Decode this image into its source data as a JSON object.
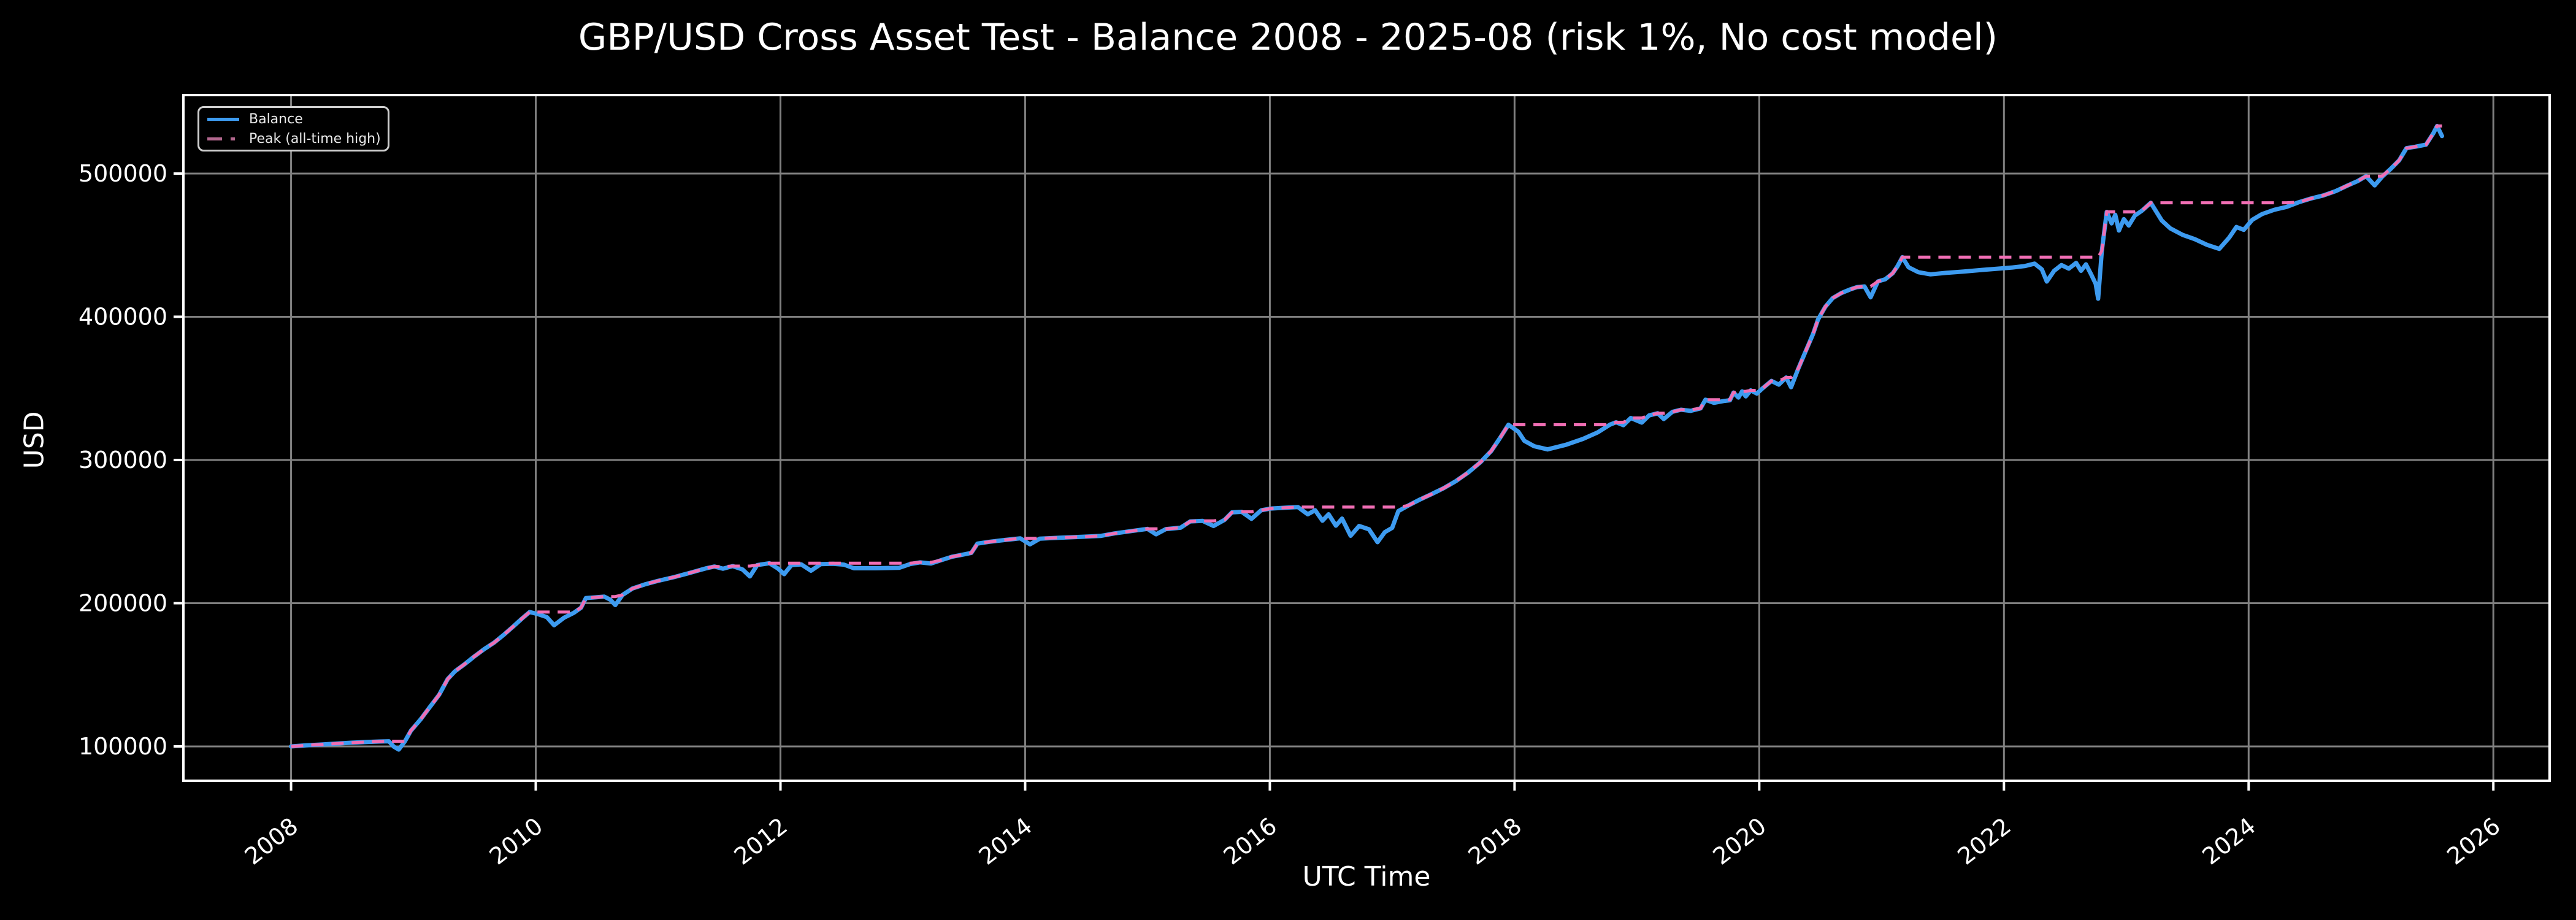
{
  "title": "GBP/USD Cross Asset Test - Balance 2008 - 2025-08 (risk 1%, No cost model)",
  "legend": {
    "position": "top-left",
    "items": [
      {
        "label": "Balance",
        "color": "#3d9bf0",
        "style": "solid"
      },
      {
        "label": "Peak (all-time high)",
        "color": "#f06eb4",
        "style": "dashed"
      }
    ]
  },
  "chart_data": {
    "type": "line",
    "title": "GBP/USD Cross Asset Test - Balance 2008 - 2025-08 (risk 1%, No cost model)",
    "xlabel": "UTC Time",
    "ylabel": "USD",
    "xlim": [
      2007.12,
      2026.46
    ],
    "ylim": [
      76000,
      554800
    ],
    "x_ticks": [
      2008,
      2010,
      2012,
      2014,
      2016,
      2018,
      2020,
      2022,
      2024,
      2026
    ],
    "x_tick_labels": [
      "2008",
      "2010",
      "2012",
      "2014",
      "2016",
      "2018",
      "2020",
      "2022",
      "2024",
      "2026"
    ],
    "y_ticks": [
      100000,
      200000,
      300000,
      400000,
      500000
    ],
    "y_tick_labels": [
      "100000",
      "200000",
      "300000",
      "400000",
      "500000"
    ],
    "grid": true,
    "background": "#000000",
    "grid_color": "#808080",
    "spine_color": "#ffffff",
    "text_color": "#ffffff",
    "series": [
      {
        "name": "Balance",
        "color": "#3d9bf0",
        "style": "solid",
        "points": [
          [
            2008.0,
            100000
          ],
          [
            2008.12,
            100700
          ],
          [
            2008.25,
            101300
          ],
          [
            2008.38,
            102000
          ],
          [
            2008.5,
            102600
          ],
          [
            2008.62,
            103100
          ],
          [
            2008.72,
            103400
          ],
          [
            2008.8,
            103600
          ],
          [
            2008.84,
            99800
          ],
          [
            2008.88,
            97800
          ],
          [
            2008.93,
            103500
          ],
          [
            2008.98,
            111000
          ],
          [
            2009.06,
            119000
          ],
          [
            2009.13,
            127000
          ],
          [
            2009.21,
            136000
          ],
          [
            2009.28,
            147000
          ],
          [
            2009.34,
            152500
          ],
          [
            2009.42,
            157500
          ],
          [
            2009.5,
            163000
          ],
          [
            2009.58,
            168000
          ],
          [
            2009.66,
            172500
          ],
          [
            2009.74,
            178000
          ],
          [
            2009.82,
            184000
          ],
          [
            2009.89,
            189500
          ],
          [
            2009.95,
            193800
          ],
          [
            2010.02,
            192300
          ],
          [
            2010.09,
            190300
          ],
          [
            2010.15,
            184600
          ],
          [
            2010.23,
            189800
          ],
          [
            2010.31,
            193200
          ],
          [
            2010.37,
            196800
          ],
          [
            2010.41,
            203600
          ],
          [
            2010.49,
            204100
          ],
          [
            2010.56,
            204600
          ],
          [
            2010.61,
            202400
          ],
          [
            2010.65,
            198700
          ],
          [
            2010.71,
            205800
          ],
          [
            2010.79,
            210200
          ],
          [
            2010.89,
            213100
          ],
          [
            2011.0,
            215600
          ],
          [
            2011.13,
            218200
          ],
          [
            2011.26,
            221200
          ],
          [
            2011.39,
            224300
          ],
          [
            2011.46,
            225600
          ],
          [
            2011.53,
            224100
          ],
          [
            2011.61,
            225900
          ],
          [
            2011.69,
            223600
          ],
          [
            2011.75,
            218700
          ],
          [
            2011.81,
            226600
          ],
          [
            2011.91,
            227900
          ],
          [
            2011.98,
            224200
          ],
          [
            2012.03,
            220300
          ],
          [
            2012.09,
            226600
          ],
          [
            2012.17,
            227100
          ],
          [
            2012.25,
            222700
          ],
          [
            2012.33,
            227300
          ],
          [
            2012.43,
            227500
          ],
          [
            2012.52,
            226900
          ],
          [
            2012.6,
            224400
          ],
          [
            2012.78,
            224400
          ],
          [
            2012.97,
            224700
          ],
          [
            2013.06,
            227300
          ],
          [
            2013.14,
            228500
          ],
          [
            2013.23,
            227700
          ],
          [
            2013.31,
            229900
          ],
          [
            2013.4,
            232400
          ],
          [
            2013.49,
            233900
          ],
          [
            2013.56,
            235100
          ],
          [
            2013.61,
            241600
          ],
          [
            2013.71,
            242900
          ],
          [
            2013.83,
            244100
          ],
          [
            2013.96,
            245300
          ],
          [
            2014.04,
            241100
          ],
          [
            2014.12,
            245100
          ],
          [
            2014.28,
            245700
          ],
          [
            2014.46,
            246300
          ],
          [
            2014.62,
            247000
          ],
          [
            2014.73,
            248700
          ],
          [
            2014.87,
            250400
          ],
          [
            2015.0,
            251900
          ],
          [
            2015.07,
            248100
          ],
          [
            2015.15,
            251700
          ],
          [
            2015.27,
            252700
          ],
          [
            2015.35,
            257100
          ],
          [
            2015.45,
            257500
          ],
          [
            2015.54,
            253900
          ],
          [
            2015.63,
            258200
          ],
          [
            2015.69,
            263400
          ],
          [
            2015.77,
            263800
          ],
          [
            2015.85,
            258900
          ],
          [
            2015.93,
            264900
          ],
          [
            2016.01,
            266100
          ],
          [
            2016.13,
            266700
          ],
          [
            2016.23,
            267100
          ],
          [
            2016.31,
            262100
          ],
          [
            2016.37,
            264900
          ],
          [
            2016.43,
            257600
          ],
          [
            2016.48,
            262100
          ],
          [
            2016.54,
            254100
          ],
          [
            2016.59,
            259100
          ],
          [
            2016.66,
            247100
          ],
          [
            2016.73,
            253900
          ],
          [
            2016.81,
            251600
          ],
          [
            2016.88,
            242600
          ],
          [
            2016.94,
            249600
          ],
          [
            2017.0,
            252600
          ],
          [
            2017.05,
            264300
          ],
          [
            2017.13,
            268100
          ],
          [
            2017.22,
            272100
          ],
          [
            2017.32,
            276100
          ],
          [
            2017.42,
            280300
          ],
          [
            2017.52,
            285200
          ],
          [
            2017.62,
            291200
          ],
          [
            2017.72,
            298300
          ],
          [
            2017.81,
            306300
          ],
          [
            2017.88,
            315200
          ],
          [
            2017.95,
            324600
          ],
          [
            2018.03,
            319800
          ],
          [
            2018.08,
            313400
          ],
          [
            2018.16,
            309600
          ],
          [
            2018.27,
            307400
          ],
          [
            2018.42,
            310600
          ],
          [
            2018.56,
            314700
          ],
          [
            2018.68,
            319300
          ],
          [
            2018.78,
            324700
          ],
          [
            2018.83,
            326300
          ],
          [
            2018.89,
            324300
          ],
          [
            2018.95,
            329300
          ],
          [
            2019.04,
            326100
          ],
          [
            2019.1,
            331100
          ],
          [
            2019.17,
            332600
          ],
          [
            2019.22,
            328600
          ],
          [
            2019.29,
            333600
          ],
          [
            2019.36,
            335100
          ],
          [
            2019.44,
            334300
          ],
          [
            2019.52,
            336000
          ],
          [
            2019.56,
            342100
          ],
          [
            2019.63,
            339900
          ],
          [
            2019.71,
            341200
          ],
          [
            2019.76,
            341700
          ],
          [
            2019.79,
            347100
          ],
          [
            2019.83,
            343600
          ],
          [
            2019.86,
            347900
          ],
          [
            2019.89,
            344400
          ],
          [
            2019.93,
            348600
          ],
          [
            2019.98,
            346400
          ],
          [
            2020.03,
            350200
          ],
          [
            2020.1,
            355200
          ],
          [
            2020.16,
            352600
          ],
          [
            2020.22,
            357600
          ],
          [
            2020.26,
            350800
          ],
          [
            2020.32,
            364000
          ],
          [
            2020.38,
            376000
          ],
          [
            2020.44,
            388000
          ],
          [
            2020.48,
            398000
          ],
          [
            2020.54,
            407000
          ],
          [
            2020.6,
            413000
          ],
          [
            2020.67,
            416500
          ],
          [
            2020.74,
            419000
          ],
          [
            2020.8,
            420700
          ],
          [
            2020.86,
            421200
          ],
          [
            2020.91,
            413600
          ],
          [
            2020.97,
            424700
          ],
          [
            2021.03,
            426200
          ],
          [
            2021.09,
            430300
          ],
          [
            2021.13,
            435300
          ],
          [
            2021.17,
            441600
          ],
          [
            2021.22,
            434600
          ],
          [
            2021.3,
            431100
          ],
          [
            2021.4,
            429600
          ],
          [
            2021.52,
            430600
          ],
          [
            2021.67,
            431600
          ],
          [
            2021.82,
            432700
          ],
          [
            2021.97,
            433700
          ],
          [
            2022.07,
            434400
          ],
          [
            2022.17,
            435400
          ],
          [
            2022.25,
            437100
          ],
          [
            2022.31,
            433100
          ],
          [
            2022.35,
            424600
          ],
          [
            2022.41,
            432100
          ],
          [
            2022.47,
            436100
          ],
          [
            2022.53,
            433600
          ],
          [
            2022.59,
            437600
          ],
          [
            2022.63,
            432100
          ],
          [
            2022.67,
            436600
          ],
          [
            2022.71,
            430100
          ],
          [
            2022.75,
            423000
          ],
          [
            2022.77,
            412600
          ],
          [
            2022.8,
            446000
          ],
          [
            2022.84,
            473200
          ],
          [
            2022.88,
            465200
          ],
          [
            2022.91,
            471200
          ],
          [
            2022.94,
            460200
          ],
          [
            2022.98,
            468200
          ],
          [
            2023.02,
            463700
          ],
          [
            2023.07,
            470700
          ],
          [
            2023.13,
            474200
          ],
          [
            2023.2,
            479600
          ],
          [
            2023.29,
            467200
          ],
          [
            2023.36,
            461700
          ],
          [
            2023.46,
            457200
          ],
          [
            2023.56,
            454200
          ],
          [
            2023.66,
            450200
          ],
          [
            2023.76,
            447400
          ],
          [
            2023.84,
            455200
          ],
          [
            2023.9,
            462700
          ],
          [
            2023.96,
            460700
          ],
          [
            2024.03,
            467700
          ],
          [
            2024.11,
            471700
          ],
          [
            2024.21,
            474700
          ],
          [
            2024.31,
            476700
          ],
          [
            2024.41,
            480000
          ],
          [
            2024.51,
            482600
          ],
          [
            2024.61,
            484700
          ],
          [
            2024.71,
            487700
          ],
          [
            2024.81,
            491700
          ],
          [
            2024.89,
            494700
          ],
          [
            2024.96,
            498200
          ],
          [
            2025.03,
            491700
          ],
          [
            2025.09,
            497700
          ],
          [
            2025.16,
            503200
          ],
          [
            2025.23,
            509200
          ],
          [
            2025.29,
            517700
          ],
          [
            2025.36,
            518700
          ],
          [
            2025.45,
            520200
          ],
          [
            2025.51,
            528200
          ],
          [
            2025.54,
            533200
          ],
          [
            2025.58,
            526200
          ]
        ]
      },
      {
        "name": "Peak (all-time high)",
        "color": "#f06eb4",
        "style": "dashed",
        "derived": "running maximum of Balance series"
      }
    ]
  }
}
